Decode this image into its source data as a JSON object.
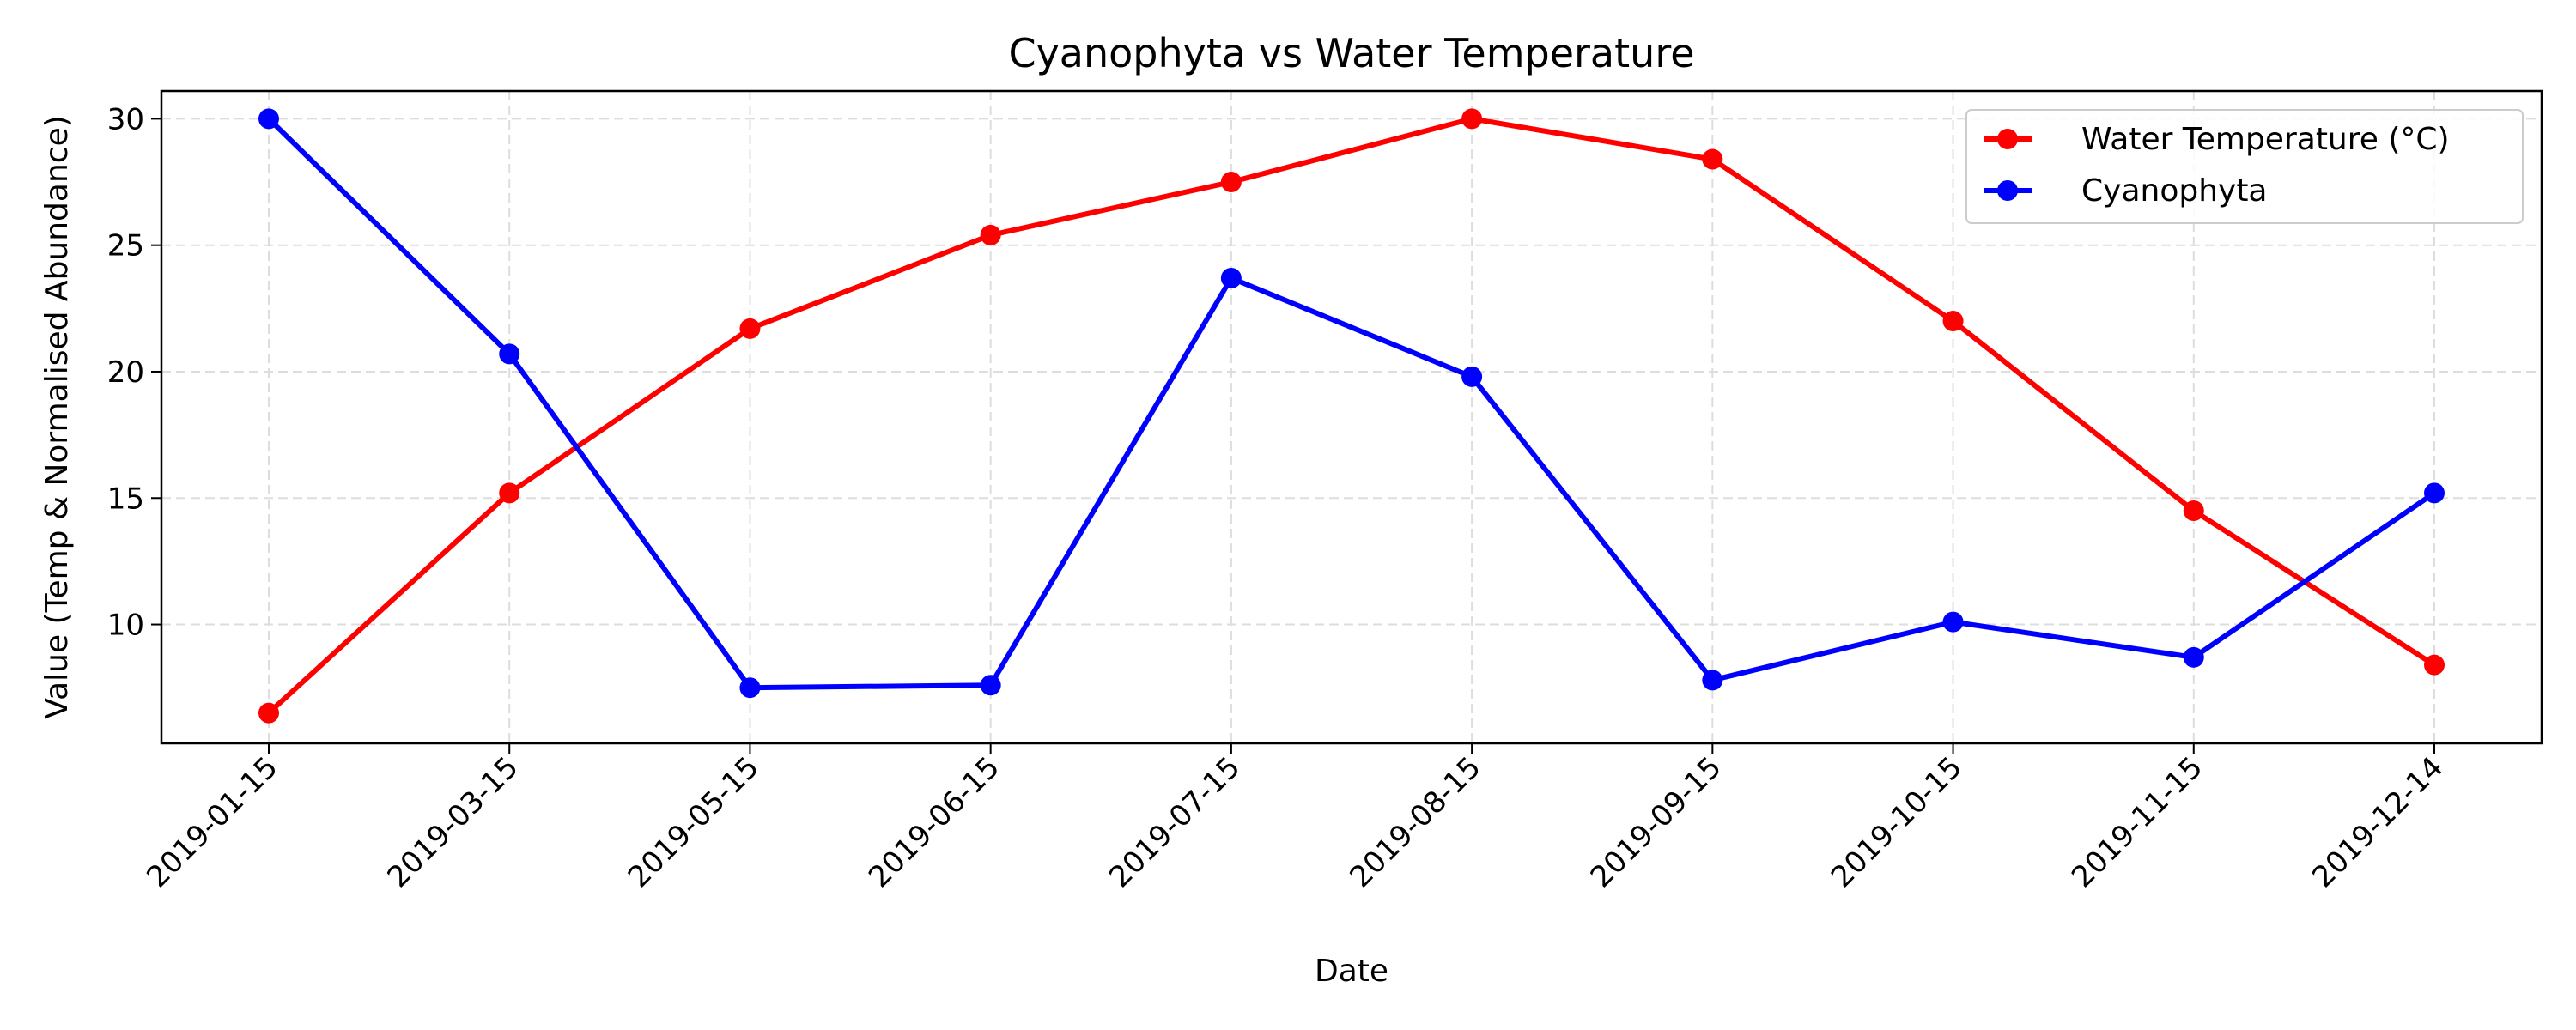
{
  "chart_data": {
    "type": "line",
    "title": "Cyanophyta vs Water Temperature",
    "xlabel": "Date",
    "ylabel": "Value (Temp & Normalised Abundance)",
    "categories": [
      "2019-01-15",
      "2019-03-15",
      "2019-05-15",
      "2019-06-15",
      "2019-07-15",
      "2019-08-15",
      "2019-09-15",
      "2019-10-15",
      "2019-11-15",
      "2019-12-14"
    ],
    "y_ticks": [
      10,
      15,
      20,
      25,
      30
    ],
    "ylim": [
      5.3,
      31.1
    ],
    "grid": true,
    "legend_position": "upper-right",
    "series": [
      {
        "name": "Water Temperature (°C)",
        "color": "#ff0000",
        "values": [
          6.5,
          15.2,
          21.7,
          25.4,
          27.5,
          30.0,
          28.4,
          22.0,
          14.5,
          8.4
        ]
      },
      {
        "name": "Cyanophyta",
        "color": "#0000ff",
        "values": [
          30.0,
          20.7,
          7.5,
          7.6,
          23.7,
          19.8,
          7.8,
          10.1,
          8.7,
          15.2
        ]
      }
    ]
  }
}
